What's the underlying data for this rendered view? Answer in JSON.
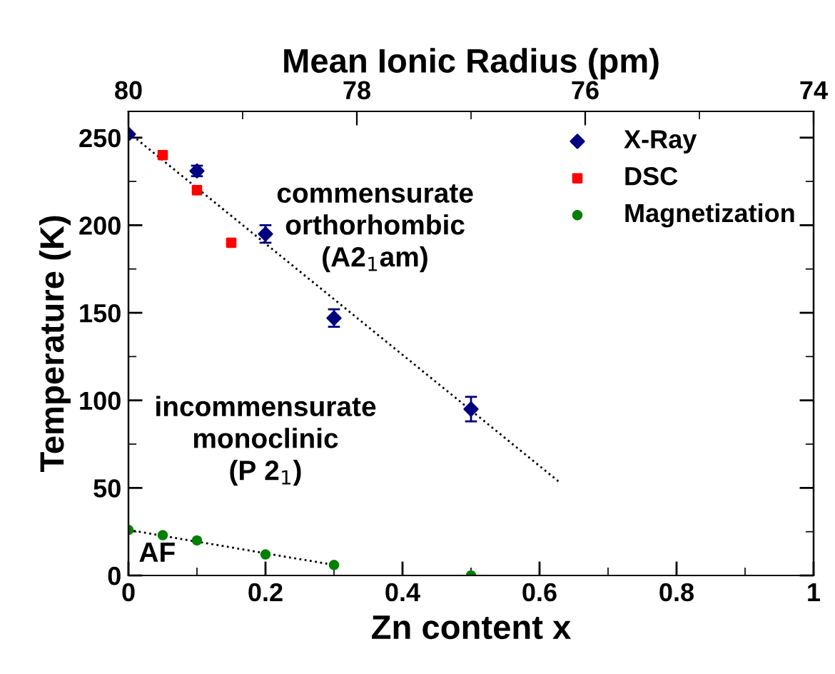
{
  "chart_data": {
    "type": "scatter",
    "xlabel": "Zn content x",
    "ylabel": "Temperature (K)",
    "x2label": "Mean Ionic Radius (pm)",
    "xlim": [
      0,
      1
    ],
    "xticks": [
      0,
      0.2,
      0.4,
      0.6,
      0.8,
      1
    ],
    "ylim": [
      0,
      265
    ],
    "yticks": [
      0,
      50,
      100,
      150,
      200,
      250
    ],
    "x2lim": [
      80,
      74
    ],
    "x2ticks": [
      80,
      78,
      76,
      74
    ],
    "series": [
      {
        "name": "X-Ray",
        "marker": "diamond",
        "color": "#000080",
        "x": [
          0,
          0.1,
          0.2,
          0.3,
          0.5
        ],
        "values": [
          252,
          231,
          195,
          147,
          95
        ],
        "errors": [
          null,
          3,
          5,
          5,
          7
        ]
      },
      {
        "name": "DSC",
        "marker": "square",
        "color": "#ff0000",
        "x": [
          0.05,
          0.1,
          0.15
        ],
        "values": [
          240,
          220,
          190
        ]
      },
      {
        "name": "Magnetization",
        "marker": "circle",
        "color": "#008000",
        "x": [
          0,
          0.05,
          0.1,
          0.2,
          0.3,
          0.5
        ],
        "values": [
          26,
          23,
          20,
          12,
          6,
          0
        ]
      },
      {
        "type": "line",
        "line_style": "dotted",
        "color": "#000000",
        "x": [
          0,
          0.63
        ],
        "values": [
          253,
          53
        ]
      },
      {
        "type": "line",
        "line_style": "dotted",
        "color": "#000000",
        "x": [
          0,
          0.3
        ],
        "values": [
          26,
          6
        ]
      }
    ],
    "annotations": [
      "commensurate\northorhombic\n(A2$_{1}$am)",
      "incommensurate\nmonoclinic\n(P 2$_{1}$)",
      "AF"
    ],
    "legend": "top right",
    "grid": false
  }
}
